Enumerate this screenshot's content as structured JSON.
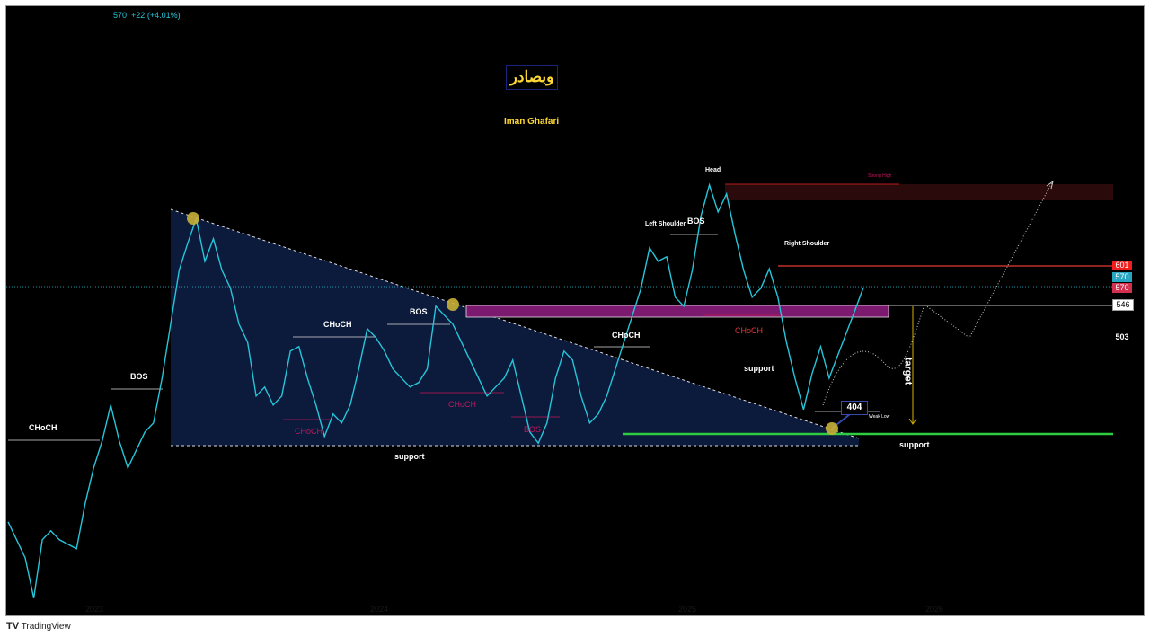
{
  "header": {
    "last_price": "570",
    "change": "+22 (+4.01%)"
  },
  "branding": {
    "title_persian": "وبصادر",
    "author": "Iman Ghafari",
    "tradingview": "TradingView"
  },
  "colors": {
    "line": "#26c6da",
    "triangle_fill": "#0d1b3e",
    "order_block": "#7b1a6e",
    "supply_zone": "#2a0a0a",
    "support": "#2ecc40",
    "resistance": "#e53935",
    "marker": "#c9b037"
  },
  "price_tags": {
    "p601": "601",
    "p570a": "570",
    "p570b": "570",
    "p546": "546",
    "p503": "503"
  },
  "annotations": {
    "choch_left": "CHoCH",
    "bos_left": "BOS",
    "choch_mid1": "CHoCH",
    "choch_mid1_low": "CHoCH",
    "bos_mid": "BOS",
    "choch_mid2": "CHoCH",
    "bos_low": "BOS",
    "choch_right": "CHoCH",
    "support_1": "support",
    "head": "Head",
    "left_shoulder": "Left Shoulder",
    "bos_ls": "BOS",
    "right_shoulder": "Right Shoulder",
    "strong_high": "Strong High",
    "choch_red": "CHoCH",
    "support_2": "support",
    "support_3": "support",
    "target": "target",
    "weak_low": "Weak Low",
    "low_value": "404"
  },
  "chart_data": {
    "type": "line",
    "title": "",
    "xlabel": "",
    "ylabel": "",
    "x_ticks": [
      "2023",
      "2024",
      "2025",
      "2026"
    ],
    "ylim": [
      131,
      941
    ],
    "grid": false,
    "values": [
      257,
      233,
      209,
      155,
      233,
      245,
      233,
      227,
      221,
      281,
      329,
      365,
      413,
      365,
      329,
      353,
      377,
      389,
      449,
      521,
      593,
      629,
      662,
      605,
      635,
      593,
      569,
      521,
      497,
      425,
      437,
      413,
      425,
      485,
      491,
      449,
      413,
      371,
      401,
      389,
      413,
      461,
      515,
      503,
      485,
      461,
      449,
      437,
      443,
      461,
      545,
      533,
      521,
      497,
      473,
      449,
      425,
      437,
      449,
      473,
      425,
      377,
      362,
      389,
      449,
      485,
      473,
      425,
      389,
      401,
      425,
      461,
      497,
      533,
      569,
      623,
      605,
      611,
      557,
      545,
      593,
      665,
      707,
      671,
      695,
      641,
      593,
      557,
      569,
      595,
      557,
      497,
      449,
      407,
      455,
      491,
      449,
      479,
      509,
      539,
      570
    ],
    "levels": {
      "strong_high": 707,
      "resistance": 601,
      "current": 570,
      "order_block_top": 546,
      "weak_low": 404,
      "support": 395
    }
  }
}
